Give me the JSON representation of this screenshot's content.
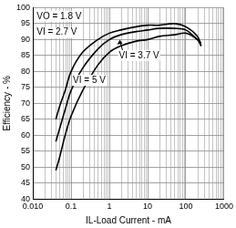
{
  "chart_data": {
    "type": "line",
    "x_label": "IL-Load Current - mA",
    "y_label": "Efficiency - %",
    "annotations": [
      "VO = 1.8 V"
    ],
    "x": [
      0.04,
      0.05,
      0.07,
      0.1,
      0.2,
      0.5,
      1,
      2,
      5,
      10,
      20,
      50,
      100,
      200,
      250
    ],
    "series": [
      {
        "name": "VI = 2.7 V",
        "color": "#000000",
        "values": [
          65,
          69,
          74,
          80,
          86,
          90,
          92,
          93,
          94,
          94.5,
          94.5,
          95,
          94,
          91,
          88
        ]
      },
      {
        "name": "VI = 3.7 V",
        "color": "#000000",
        "values": [
          58,
          62,
          68,
          74,
          81,
          87,
          90,
          91.5,
          92.5,
          93,
          93.5,
          93.5,
          93,
          90,
          89
        ]
      },
      {
        "name": "VI = 5 V",
        "color": "#000000",
        "values": [
          49,
          53,
          60,
          66,
          74,
          82,
          86,
          88,
          89.5,
          90,
          91,
          91.5,
          92,
          90,
          88
        ]
      }
    ],
    "log": "x",
    "xlim": [
      0.01,
      1000
    ],
    "xticks": [
      {
        "value": 0.01,
        "label": "0.010"
      },
      0.1,
      1,
      10,
      100,
      1000
    ],
    "ylim": [
      40,
      100
    ],
    "yticks": [
      40,
      45,
      50,
      55,
      60,
      65,
      70,
      75,
      80,
      85,
      90,
      95,
      100
    ],
    "grid": true
  }
}
